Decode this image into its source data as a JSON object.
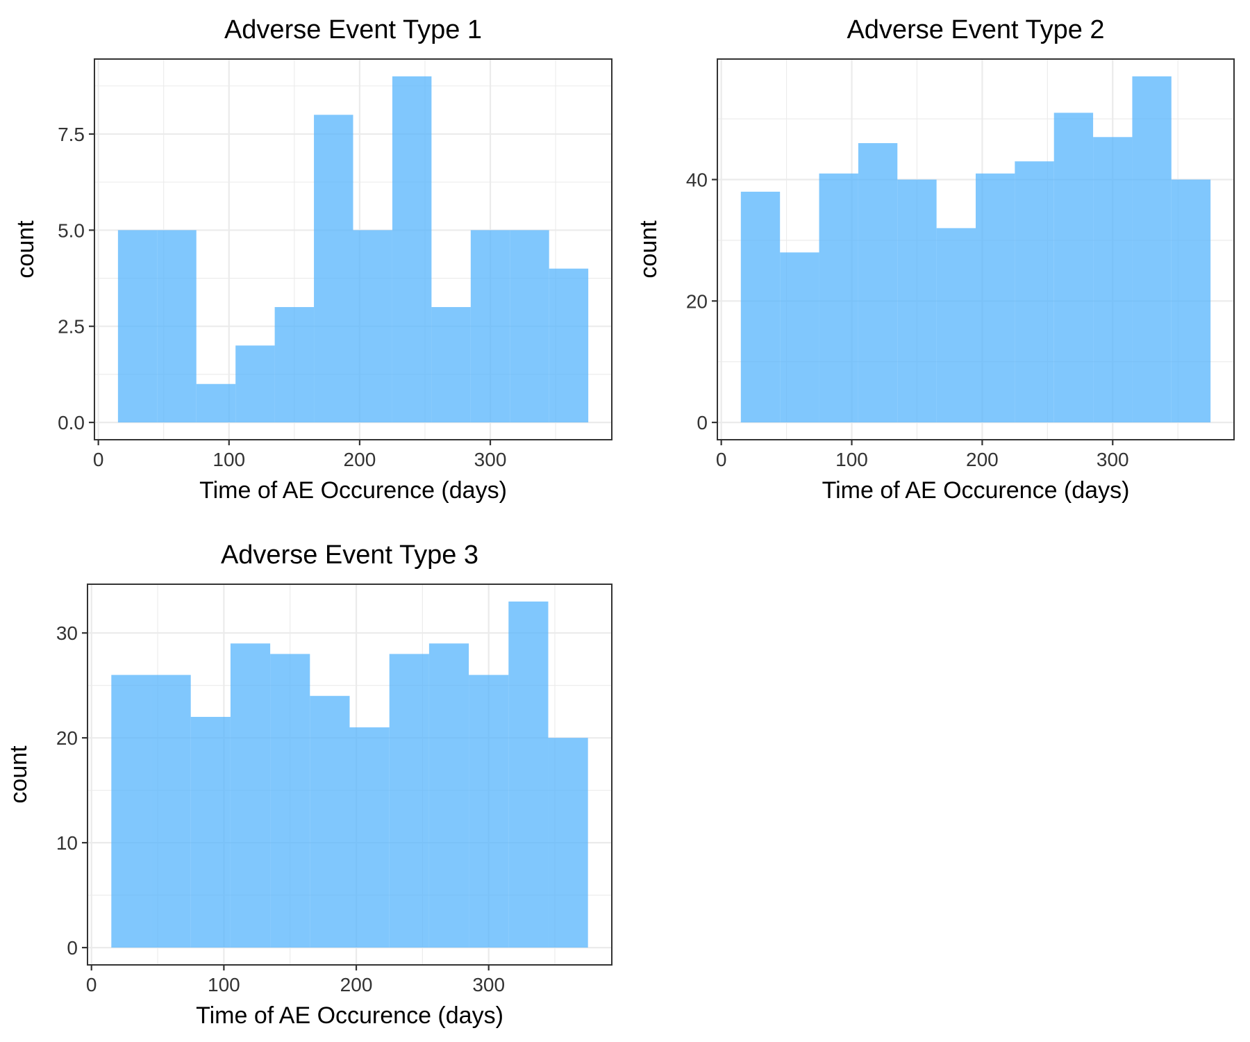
{
  "chart_data": [
    {
      "type": "bar",
      "title": "Adverse Event Type 1",
      "xlabel": "Time of AE Occurence (days)",
      "ylabel": "count",
      "bins": [
        [
          15,
          45
        ],
        [
          45,
          75
        ],
        [
          75,
          105
        ],
        [
          105,
          135
        ],
        [
          135,
          165
        ],
        [
          165,
          195
        ],
        [
          195,
          225
        ],
        [
          225,
          255
        ],
        [
          255,
          285
        ],
        [
          285,
          315
        ],
        [
          315,
          345
        ],
        [
          345,
          375
        ]
      ],
      "values": [
        5,
        5,
        1,
        2,
        3,
        8,
        5,
        9,
        3,
        5,
        5,
        4
      ],
      "xlim": [
        -3,
        393
      ],
      "ylim": [
        -0.45,
        9.45
      ],
      "x_ticks": [
        0,
        100,
        200,
        300
      ],
      "y_ticks": [
        0,
        2.5,
        5,
        7.5
      ],
      "x_tick_labels": [
        "0",
        "100",
        "200",
        "300"
      ],
      "y_tick_labels": [
        "0.0",
        "2.5",
        "5.0",
        "7.5"
      ],
      "grid": true,
      "color": "#56b4fc"
    },
    {
      "type": "bar",
      "title": "Adverse Event Type 2",
      "xlabel": "Time of AE Occurence (days)",
      "ylabel": "count",
      "bins": [
        [
          15,
          45
        ],
        [
          45,
          75
        ],
        [
          75,
          105
        ],
        [
          105,
          135
        ],
        [
          135,
          165
        ],
        [
          165,
          195
        ],
        [
          195,
          225
        ],
        [
          225,
          255
        ],
        [
          255,
          285
        ],
        [
          285,
          315
        ],
        [
          315,
          345
        ],
        [
          345,
          375
        ]
      ],
      "values": [
        38,
        28,
        41,
        46,
        40,
        32,
        41,
        43,
        51,
        47,
        57,
        40
      ],
      "xlim": [
        -3,
        393
      ],
      "ylim": [
        -2.85,
        59.85
      ],
      "x_ticks": [
        0,
        100,
        200,
        300
      ],
      "y_ticks": [
        0,
        20,
        40
      ],
      "x_tick_labels": [
        "0",
        "100",
        "200",
        "300"
      ],
      "y_tick_labels": [
        "0",
        "20",
        "40"
      ],
      "grid": true,
      "color": "#56b4fc"
    },
    {
      "type": "bar",
      "title": "Adverse Event Type 3",
      "xlabel": "Time of AE Occurence (days)",
      "ylabel": "count",
      "bins": [
        [
          15,
          45
        ],
        [
          45,
          75
        ],
        [
          75,
          105
        ],
        [
          105,
          135
        ],
        [
          135,
          165
        ],
        [
          165,
          195
        ],
        [
          195,
          225
        ],
        [
          225,
          255
        ],
        [
          255,
          285
        ],
        [
          285,
          315
        ],
        [
          315,
          345
        ],
        [
          345,
          375
        ]
      ],
      "values": [
        26,
        26,
        22,
        29,
        28,
        24,
        21,
        28,
        29,
        26,
        33,
        20
      ],
      "xlim": [
        -3,
        393
      ],
      "ylim": [
        -1.65,
        34.65
      ],
      "x_ticks": [
        0,
        100,
        200,
        300
      ],
      "y_ticks": [
        0,
        10,
        20,
        30
      ],
      "x_tick_labels": [
        "0",
        "100",
        "200",
        "300"
      ],
      "y_tick_labels": [
        "0",
        "10",
        "20",
        "30"
      ],
      "grid": true,
      "color": "#56b4fc"
    }
  ]
}
